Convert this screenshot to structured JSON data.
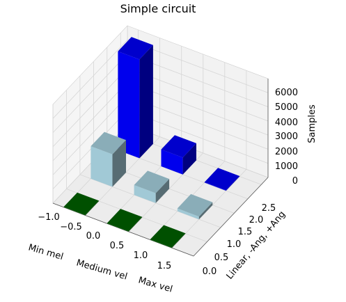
{
  "chart_data": {
    "type": "bar3d",
    "title": "Simple circuit",
    "x_tick_labels": [
      "−1.0",
      "−0.5",
      "0.0",
      "0.5",
      "1.0",
      "1.5"
    ],
    "x_category_labels": [
      "Min mel",
      "Medium vel",
      "Max vel"
    ],
    "y_label": "Linear, -Ang, +Ang",
    "y_tick_labels": [
      "0.0",
      "0.5",
      "1.0",
      "1.5",
      "2.0",
      "2.5"
    ],
    "z_label": "Samples",
    "z_tick_labels": [
      "0",
      "1000",
      "2000",
      "3000",
      "4000",
      "5000",
      "6000"
    ],
    "zlim": [
      0,
      7000
    ],
    "grid": true,
    "series": [
      {
        "row": "Linear",
        "color": "#006400",
        "values": [
          0,
          0,
          0
        ]
      },
      {
        "row": "-Ang",
        "color": "#add8e6",
        "values": [
          2300,
          700,
          200
        ]
      },
      {
        "row": "+Ang",
        "color": "#0000ff",
        "values": [
          7000,
          1200,
          0
        ]
      }
    ]
  }
}
